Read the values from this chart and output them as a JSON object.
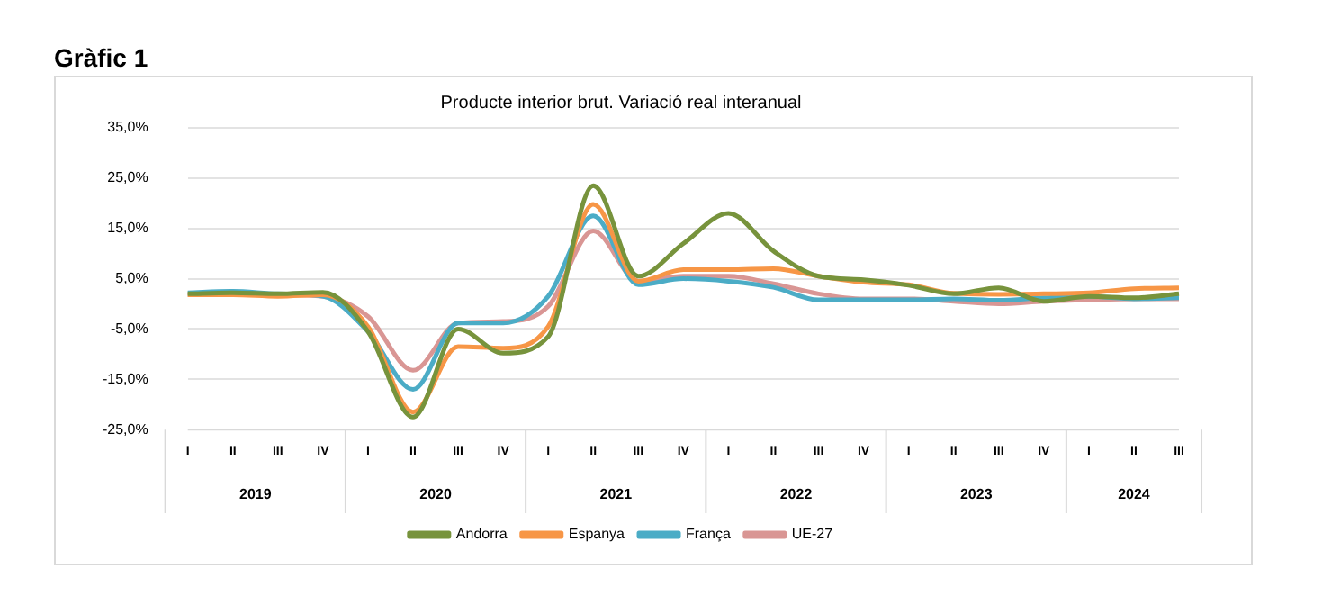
{
  "chart_data": {
    "type": "line",
    "title": "Gràfic 1",
    "subtitle": "Producte interior brut. Variació real interanual",
    "categories": [
      "I",
      "II",
      "III",
      "IV",
      "I",
      "II",
      "III",
      "IV",
      "I",
      "II",
      "III",
      "IV",
      "I",
      "II",
      "III",
      "IV",
      "I",
      "II",
      "III",
      "IV",
      "I",
      "II",
      "III"
    ],
    "annotations": [
      "2019",
      "2020",
      "2021",
      "2022",
      "2023",
      "2024"
    ],
    "series": [
      {
        "name": "Andorra",
        "color": "#77933c",
        "values": [
          2.0,
          2.2,
          2.0,
          2.3,
          -5.5,
          -22.5,
          -5.0,
          -9.8,
          -6.5,
          23.5,
          5.5,
          12.0,
          18.0,
          10.5,
          5.5,
          4.8,
          3.7,
          2.0,
          3.2,
          0.5,
          1.5,
          1.2,
          2.0
        ]
      },
      {
        "name": "Espanya",
        "color": "#f79646",
        "values": [
          1.8,
          1.8,
          1.5,
          1.8,
          -4.5,
          -21.5,
          -8.5,
          -8.8,
          -4.5,
          19.8,
          4.5,
          6.8,
          6.8,
          7.0,
          5.5,
          4.3,
          3.8,
          2.1,
          1.9,
          2.0,
          2.2,
          3.0,
          3.2
        ]
      },
      {
        "name": "França",
        "color": "#4bacc6",
        "values": [
          2.2,
          2.5,
          2.0,
          1.5,
          -5.5,
          -17.0,
          -3.8,
          -3.8,
          1.5,
          17.5,
          3.8,
          5.0,
          4.5,
          3.3,
          0.8,
          0.8,
          0.8,
          1.0,
          0.7,
          1.2,
          1.5,
          1.0,
          1.2
        ]
      },
      {
        "name": "UE-27",
        "color": "#d99694",
        "values": [
          1.8,
          2.0,
          1.8,
          1.5,
          -2.5,
          -13.2,
          -3.8,
          -3.5,
          -0.5,
          14.5,
          4.5,
          5.5,
          5.5,
          4.0,
          2.0,
          1.0,
          1.0,
          0.5,
          0.0,
          0.5,
          0.8,
          1.0,
          1.0
        ]
      }
    ],
    "ylim": [
      -25,
      35
    ],
    "yticks": [
      {
        "value": -25,
        "label": "-25,0%"
      },
      {
        "value": -15,
        "label": "-15,0%"
      },
      {
        "value": -5,
        "label": "-5,0%"
      },
      {
        "value": 5,
        "label": "5,0%"
      },
      {
        "value": 15,
        "label": "15,0%"
      },
      {
        "value": 25,
        "label": "25,0%"
      },
      {
        "value": 35,
        "label": "35,0%"
      }
    ],
    "grid": "y",
    "legend": "bottom",
    "marker": "none",
    "line_style": "solid"
  }
}
